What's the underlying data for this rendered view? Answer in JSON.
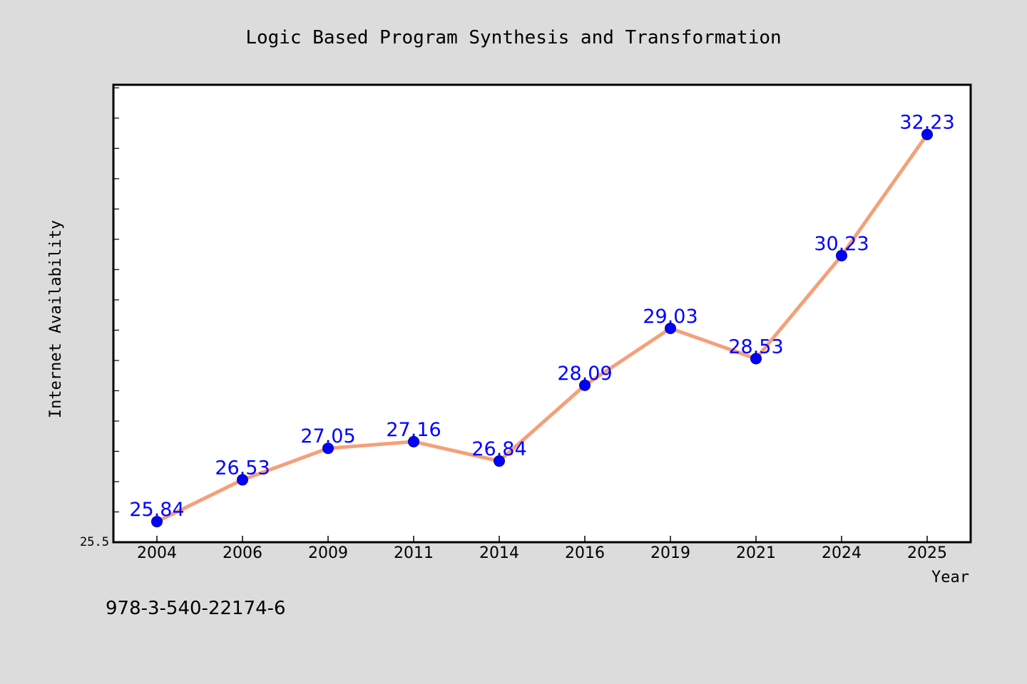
{
  "chart_data": {
    "type": "line",
    "title": "Logic Based Program Synthesis and Transformation",
    "xlabel": "Year",
    "ylabel": "Internet Availability",
    "categories": [
      "2004",
      "2006",
      "2009",
      "2011",
      "2014",
      "2016",
      "2019",
      "2021",
      "2024",
      "2025"
    ],
    "series": [
      {
        "values": [
          25.84,
          26.53,
          27.05,
          27.16,
          26.84,
          28.09,
          29.03,
          28.53,
          30.23,
          32.23
        ],
        "data_labels": [
          "25.84",
          "26.53",
          "27.05",
          "27.16",
          "26.84",
          "28.09",
          "29.03",
          "28.53",
          "30.23",
          "32.23"
        ]
      }
    ],
    "ylim": [
      25.5,
      33.05
    ],
    "y_tick_labels": [
      "25.5"
    ],
    "grid": false,
    "legend": "none",
    "colors": {
      "line": "#f4a07a",
      "marker": "#0000ff",
      "data_label": "#0000ff",
      "background": "#dcdcdc",
      "plot_background": "#ffffff"
    }
  },
  "footnote": "978-3-540-22174-6"
}
